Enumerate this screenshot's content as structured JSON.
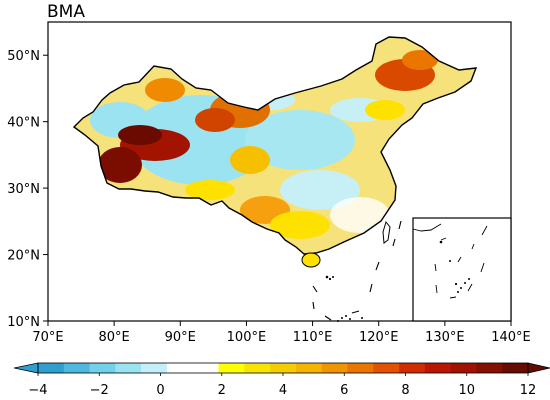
{
  "title": "BMA",
  "map": {
    "lon_range": [
      70,
      140
    ],
    "lat_range": [
      10,
      55
    ],
    "x_ticks": [
      "70°E",
      "80°E",
      "90°E",
      "100°E",
      "110°E",
      "120°E",
      "130°E",
      "140°E"
    ],
    "y_ticks": [
      "10°N",
      "20°N",
      "30°N",
      "40°N",
      "50°N"
    ],
    "inset": "South China Sea islands"
  },
  "colorbar": {
    "tick_labels": [
      "−4",
      "−2",
      "0",
      "2",
      "4",
      "6",
      "8",
      "10",
      "12"
    ],
    "range": [
      -4,
      12
    ],
    "extend": "both",
    "colors": [
      "#2f9fcf",
      "#4fb8e0",
      "#72d1ea",
      "#9ae3f2",
      "#c5eff8",
      "#ffffff",
      "#ffffff",
      "#ffff00",
      "#f7e400",
      "#f4cd00",
      "#f4b400",
      "#f09400",
      "#ea7600",
      "#e25200",
      "#d22c00",
      "#bb1600",
      "#a11200",
      "#841000",
      "#650b00"
    ]
  },
  "colors": {
    "negative": "#4fc4e6",
    "neutral": "#ffffff",
    "low_positive": "#f4d800",
    "high_positive": "#c41800",
    "extreme": "#6a0a00"
  }
}
